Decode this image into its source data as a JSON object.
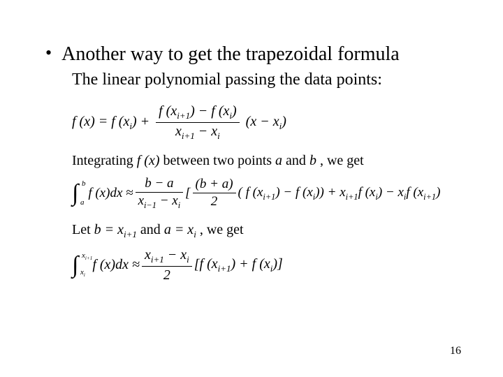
{
  "bullet": {
    "marker": "•",
    "text": "Another way to get the trapezoidal  formula"
  },
  "subtext": "The linear polynomial passing the data points:",
  "eq1": {
    "lhs": "f (x) = f (x",
    "lhs_sub": "i",
    "lhs_tail": ") +",
    "num_a": "f (x",
    "num_a_sub": "i+1",
    "num_mid": ") − f (x",
    "num_b_sub": "i",
    "num_tail": ")",
    "den_a": "x",
    "den_a_sub": "i+1",
    "den_mid": " − x",
    "den_b_sub": "i",
    "rhs_a": "(x − x",
    "rhs_sub": "i",
    "rhs_tail": ")"
  },
  "line2": {
    "pre": "Integrating ",
    "mid": "f (x)",
    "post1": " between two points",
    "a": "a",
    "and": " and ",
    "b": "b",
    "tail": ",   we get"
  },
  "eq3": {
    "int_ub": "b",
    "int_lb": "a",
    "integrand": "f (x)dx ≈ ",
    "f1_num": "b − a",
    "f1_den_a": "x",
    "f1_den_a_sub": "i−1",
    "f1_den_mid": " − x",
    "f1_den_b_sub": "i",
    "br_open": "[",
    "f2_num": "(b + a)",
    "f2_den": "2",
    "mid_a": "( f (x",
    "mid_a_sub": "i+1",
    "mid_b": ") − f (x",
    "mid_b_sub": "i",
    "mid_c": ")) + x",
    "mid_c_sub": "i+1",
    "mid_d": "f (x",
    "mid_d_sub": "i",
    "mid_e": ") − x",
    "mid_e_sub": "i",
    "mid_f": "f (x",
    "mid_f_sub": "i+1",
    "tail": ")"
  },
  "line4": {
    "pre": "Let ",
    "b": "b = x",
    "b_sub": "i+1",
    "and": " and ",
    "a": "a   =   x",
    "a_sub": "i",
    "tail": ", we get"
  },
  "eq5": {
    "int_ub_a": "x",
    "int_ub_sub": "i+1",
    "int_lb_a": "x",
    "int_lb_sub": "i",
    "integrand": "f (x)dx ≈ ",
    "f_num_a": "x",
    "f_num_a_sub": "i+1",
    "f_num_mid": " − x",
    "f_num_b_sub": "i",
    "f_den": "2",
    "br_open": "[",
    "t_a": " f (x",
    "t_a_sub": "i+1",
    "t_b": ") + f (x",
    "t_b_sub": "i",
    "t_c": ")]"
  },
  "page": "16",
  "colors": {
    "bg": "#ffffff",
    "text": "#000000"
  }
}
